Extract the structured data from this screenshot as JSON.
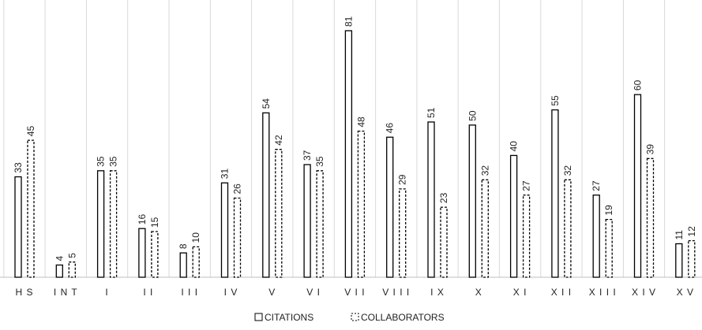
{
  "chart_data": {
    "type": "bar",
    "categories": [
      "HS",
      "INT",
      "I",
      "II",
      "III",
      "IV",
      "V",
      "VI",
      "VII",
      "VIII",
      "IX",
      "X",
      "XI",
      "XII",
      "XIII",
      "XIV",
      "XV"
    ],
    "series": [
      {
        "name": "CITATIONS",
        "values": [
          33,
          4,
          35,
          16,
          8,
          31,
          54,
          37,
          81,
          46,
          51,
          50,
          40,
          55,
          27,
          60,
          11
        ],
        "style": "solid"
      },
      {
        "name": "COLLABORATORS",
        "values": [
          45,
          5,
          35,
          15,
          10,
          26,
          42,
          35,
          48,
          29,
          23,
          32,
          27,
          32,
          19,
          39,
          12
        ],
        "style": "dashed"
      }
    ],
    "ylim": [
      0,
      81
    ],
    "grid": "vertical-separators",
    "legend": "bottom-center",
    "colors": {
      "bar_fill": "#ffffff",
      "bar_stroke": "#000000",
      "separator": "#d9d9d9",
      "baseline": "#bfbfbf"
    }
  }
}
